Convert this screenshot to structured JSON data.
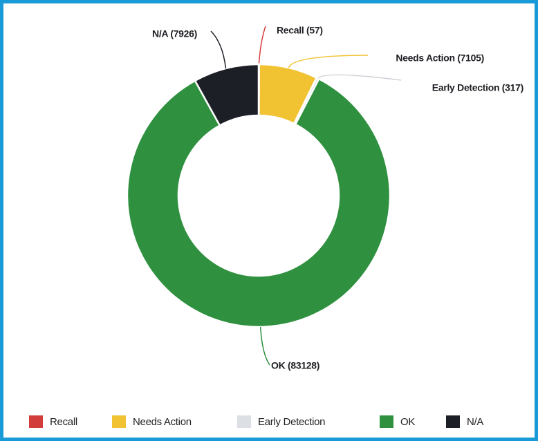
{
  "chart_data": {
    "type": "donut",
    "categories": [
      "Recall",
      "Needs Action",
      "Early Detection",
      "OK",
      "N/A"
    ],
    "values": [
      57,
      7105,
      317,
      83128,
      7926
    ],
    "value_labels": [
      "Recall (57)",
      "Needs Action (7105)",
      "Early Detection (317)",
      "OK (83128)",
      "N/A (7926)"
    ],
    "colors": [
      "#d23c3a",
      "#f1c232",
      "#dcdfe4",
      "#2f913f",
      "#1d1f27"
    ],
    "legend": "bottom"
  }
}
